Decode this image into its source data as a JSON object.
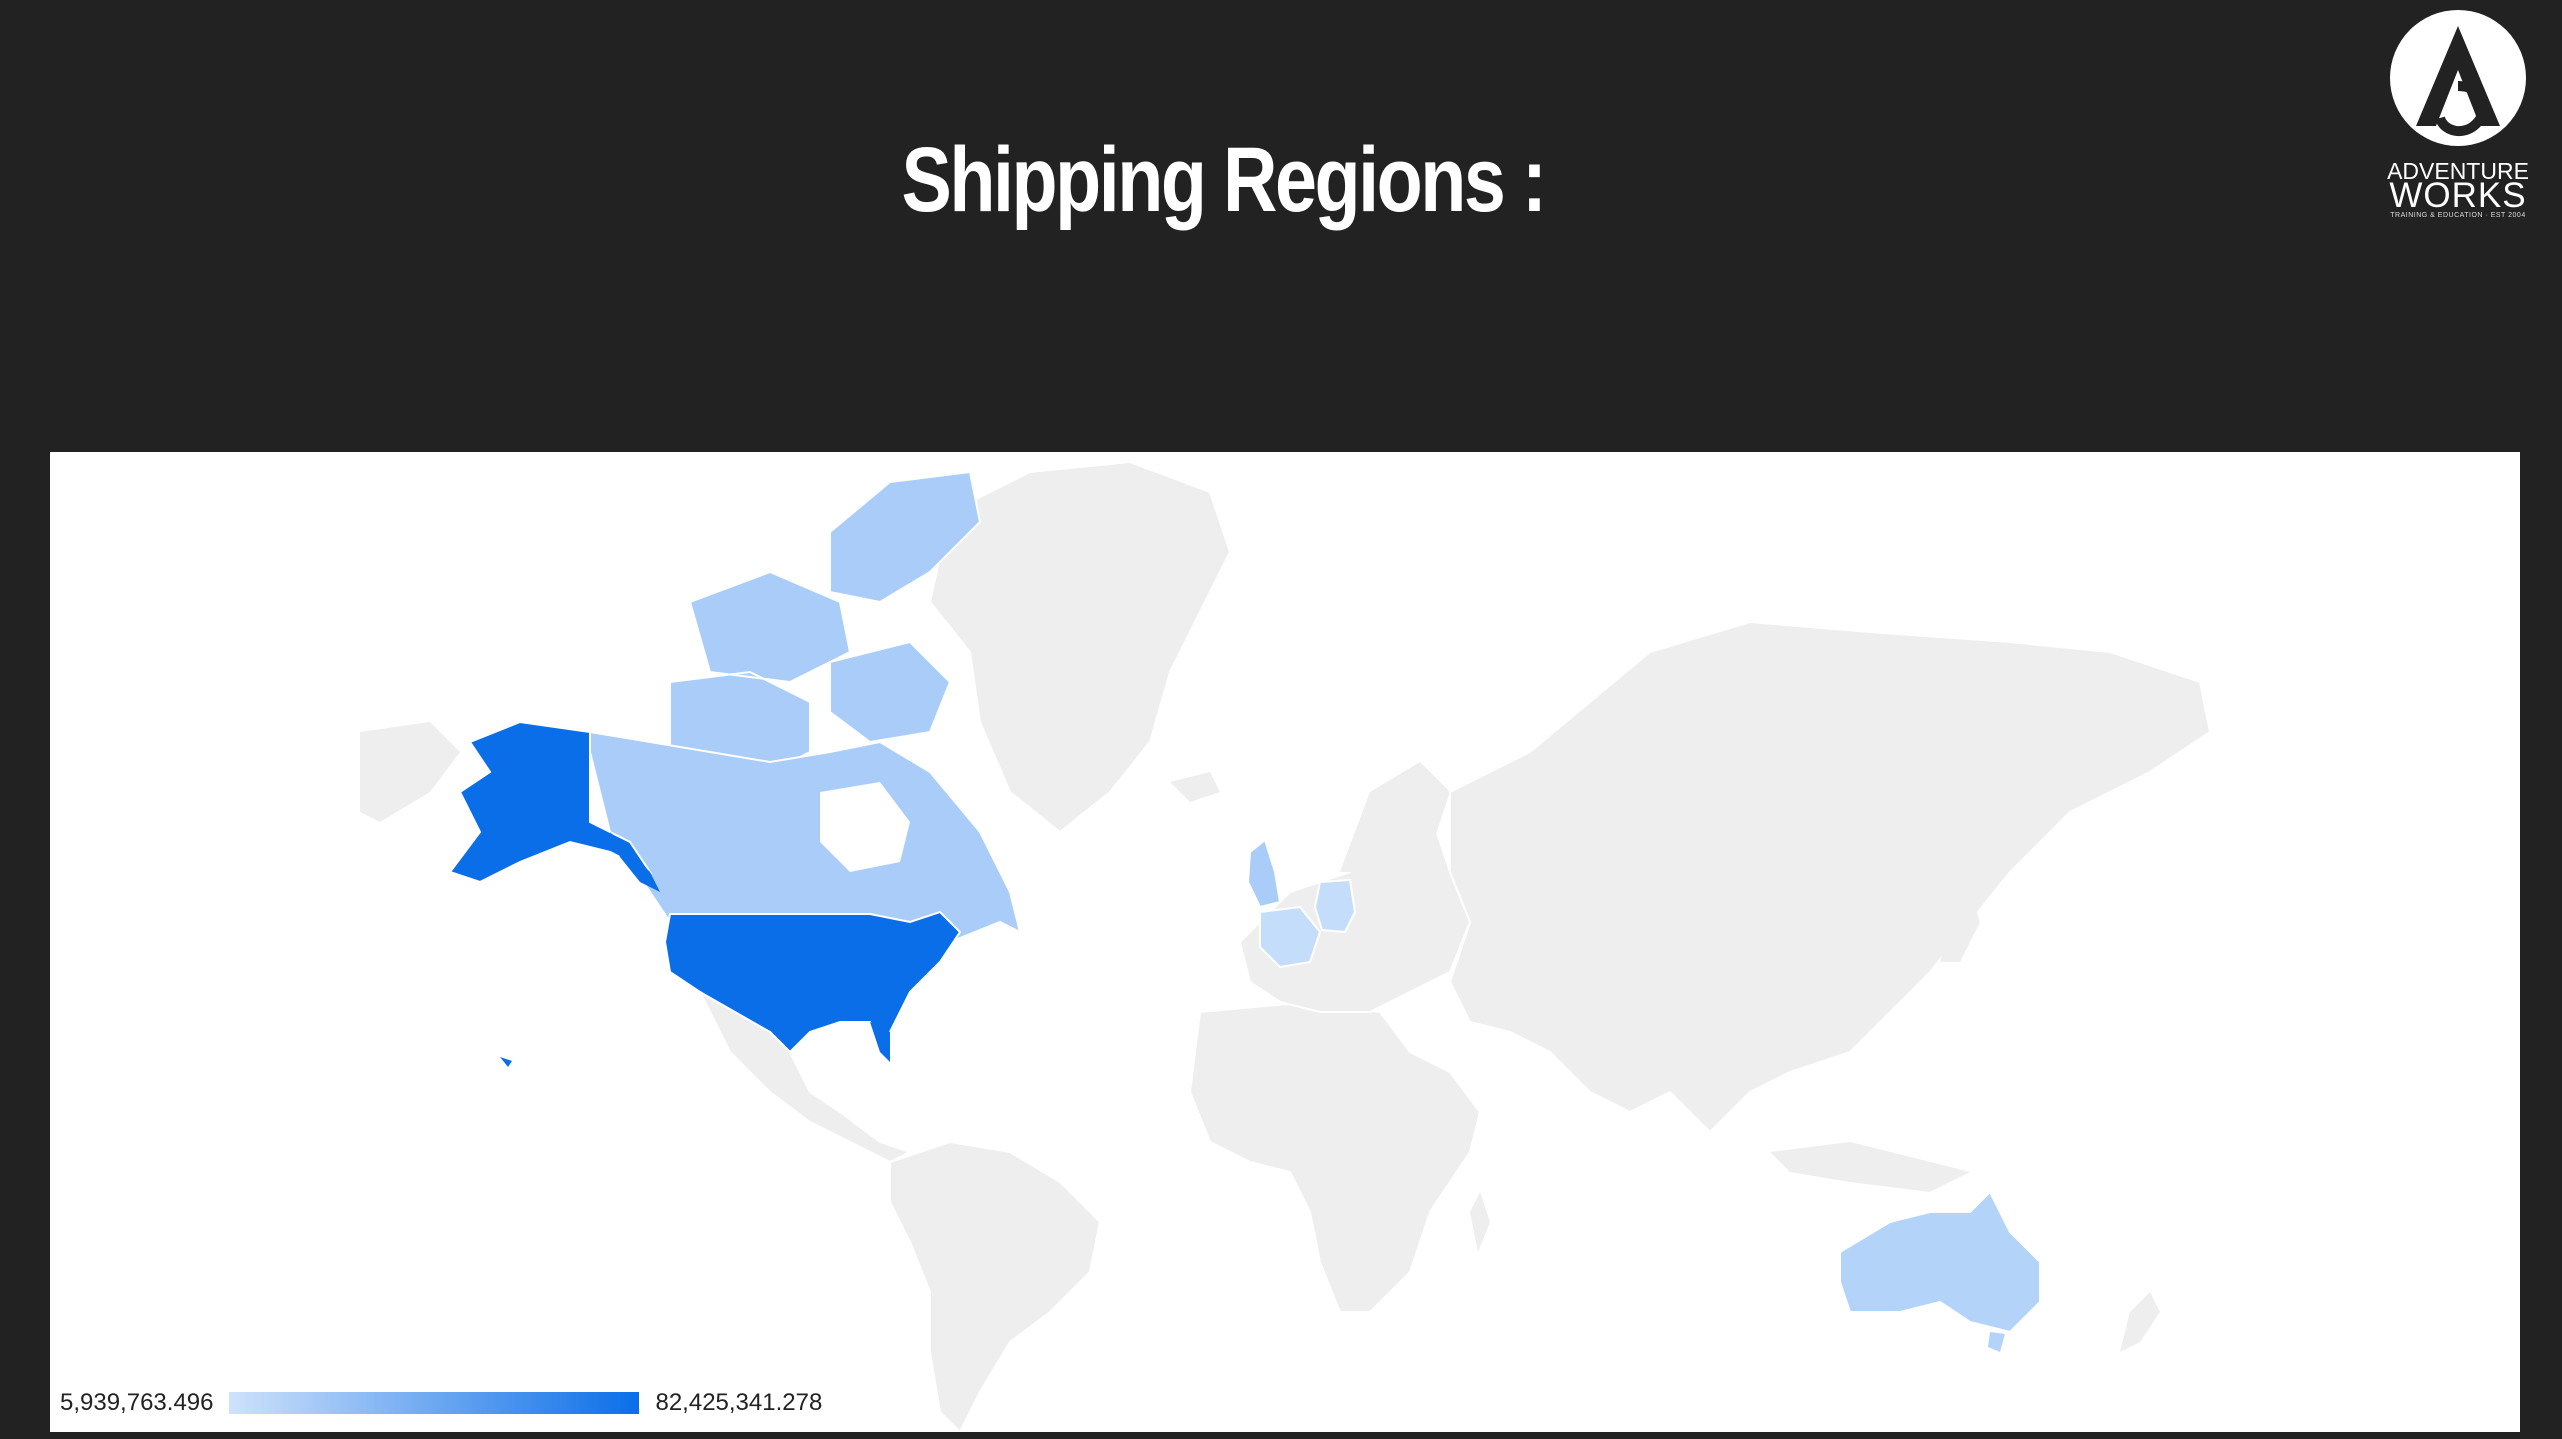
{
  "title": "Shipping Regions :",
  "logo": {
    "line1": "ADVENTURE",
    "line2": "WORKS",
    "line3": "TRAINING & EDUCATION · EST 2004"
  },
  "map": {
    "legend": {
      "min": "5,939,763.496",
      "max": "82,425,341.278",
      "color_min": "#cfe2fb",
      "color_max": "#0a6ee8"
    },
    "base_land_color": "#eeeeee",
    "regions": [
      {
        "name": "United States",
        "level": "high",
        "color": "#0a6ee8"
      },
      {
        "name": "Canada",
        "level": "low",
        "color": "#a9cdf8"
      },
      {
        "name": "United Kingdom",
        "level": "low",
        "color": "#a9cdf8"
      },
      {
        "name": "France",
        "level": "low",
        "color": "#c4ddfa"
      },
      {
        "name": "Germany",
        "level": "low",
        "color": "#c4ddfa"
      },
      {
        "name": "Australia",
        "level": "low",
        "color": "#b3d3f9"
      }
    ]
  }
}
